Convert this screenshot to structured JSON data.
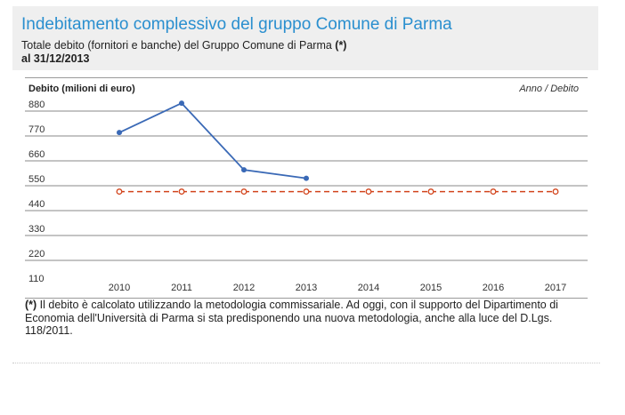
{
  "header": {
    "title": "Indebitamento complessivo del gruppo Comune di Parma",
    "subtitle_line1": "Totale debito (fornitori e banche) del Gruppo Comune di Parma ",
    "subtitle_mark": "(*)",
    "subtitle_line2": "al 31/12/2013"
  },
  "colors": {
    "title": "#2a8fcf",
    "series_debt": "#3a69b6",
    "series_reference": "#d2441c",
    "grid": "#8a8a8a"
  },
  "chart_data": {
    "type": "line",
    "ylabel": "Debito (milioni di euro)",
    "legend_label": "Anno / Debito",
    "categories": [
      "2010",
      "2011",
      "2012",
      "2013",
      "2014",
      "2015",
      "2016",
      "2017"
    ],
    "y_ticks": [
      110,
      220,
      330,
      440,
      550,
      660,
      770,
      880
    ],
    "ylim": [
      110,
      990
    ],
    "grid": true,
    "series": [
      {
        "key": "debt",
        "values": [
          785,
          915,
          620,
          583,
          null,
          null,
          null,
          null
        ],
        "style": "solid-dots"
      },
      {
        "key": "reference",
        "values": [
          524,
          524,
          524,
          524,
          524,
          524,
          524,
          524
        ],
        "style": "dashed-rings"
      }
    ]
  },
  "footnote": {
    "mark": "(*)",
    "text": " Il debito è calcolato utilizzando la metodologia commissariale. Ad oggi, con il supporto del Dipartimento di Economia dell'Università di Parma si sta predisponendo una nuova metodologia, anche alla luce del D.Lgs. 118/2011."
  }
}
